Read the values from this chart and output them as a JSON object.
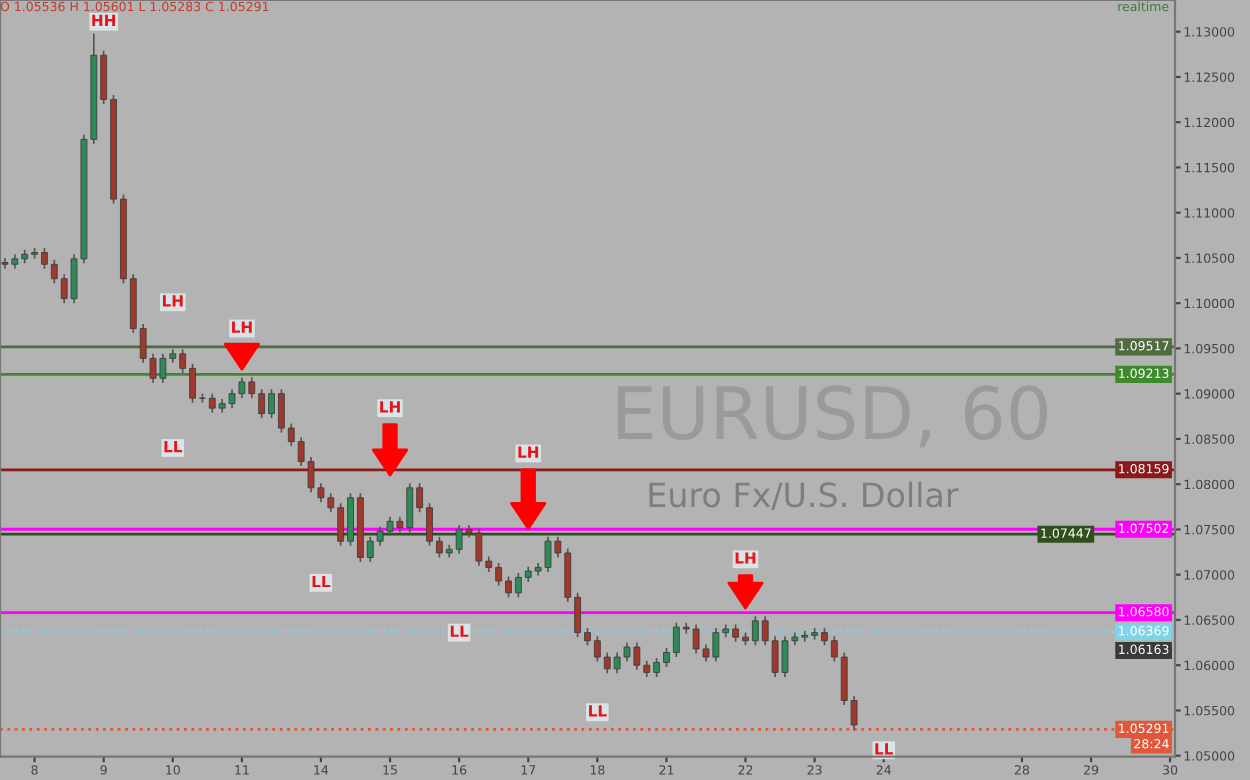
{
  "chart_data": {
    "type": "candlestick",
    "title": "EURUSD, 60",
    "subtitle": "Euro Fx/U.S. Dollar",
    "categories": [
      null,
      null,
      null,
      "8",
      null,
      null,
      null,
      null,
      null,
      null,
      "9",
      null,
      null,
      null,
      null,
      null,
      null,
      "10",
      null,
      null,
      null,
      null,
      null,
      null,
      "11",
      null,
      null,
      null,
      null,
      null,
      null,
      null,
      "14",
      null,
      null,
      null,
      null,
      null,
      null,
      "15",
      null,
      null,
      null,
      null,
      null,
      null,
      "16",
      null,
      null,
      null,
      null,
      null,
      null,
      "17",
      null,
      null,
      null,
      null,
      null,
      null,
      "18",
      null,
      null,
      null,
      null,
      null,
      null,
      "21",
      null,
      null,
      null,
      null,
      null,
      null,
      null,
      "22",
      null,
      null,
      null,
      null,
      null,
      null,
      "23",
      null,
      null,
      null,
      null,
      null,
      null,
      "24",
      null,
      null,
      null,
      null,
      null,
      null,
      null,
      null,
      null,
      null,
      null,
      null,
      null,
      "28",
      null,
      null,
      null,
      null,
      null,
      null,
      "29",
      null,
      null,
      null,
      null,
      null,
      null,
      null,
      "30"
    ],
    "ohlc": [
      [
        1.1045,
        1.105,
        1.1038,
        1.1043
      ],
      [
        1.1043,
        1.1054,
        1.1038,
        1.1049
      ],
      [
        1.1049,
        1.1059,
        1.1044,
        1.1054
      ],
      [
        1.1054,
        1.1061,
        1.1049,
        1.1056
      ],
      [
        1.1056,
        1.1061,
        1.1038,
        1.1043
      ],
      [
        1.1043,
        1.1048,
        1.1022,
        1.1027
      ],
      [
        1.1027,
        1.1032,
        1.1,
        1.1005
      ],
      [
        1.1005,
        1.1054,
        1.1,
        1.1049
      ],
      [
        1.1049,
        1.1186,
        1.1044,
        1.1181
      ],
      [
        1.1181,
        1.1298,
        1.1176,
        1.1274
      ],
      [
        1.1274,
        1.1279,
        1.122,
        1.1225
      ],
      [
        1.1225,
        1.123,
        1.111,
        1.1115
      ],
      [
        1.1115,
        1.112,
        1.1022,
        1.1027
      ],
      [
        1.1027,
        1.1032,
        1.0967,
        1.0972
      ],
      [
        1.0972,
        1.0977,
        1.0934,
        1.0939
      ],
      [
        1.0939,
        1.0944,
        1.0912,
        1.0917
      ],
      [
        1.0917,
        1.0944,
        1.0912,
        1.0939
      ],
      [
        1.0939,
        1.0949,
        1.0934,
        1.0944
      ],
      [
        1.0944,
        1.0949,
        1.0923,
        1.0928
      ],
      [
        1.0928,
        1.0933,
        1.089,
        1.0895
      ],
      [
        1.0895,
        1.09,
        1.089,
        1.0895
      ],
      [
        1.0895,
        1.09,
        1.0879,
        1.0884
      ],
      [
        1.0884,
        1.0894,
        1.0879,
        1.0889
      ],
      [
        1.0889,
        1.0905,
        1.0884,
        1.09
      ],
      [
        1.09,
        1.0918,
        1.0895,
        1.0913
      ],
      [
        1.0913,
        1.0918,
        1.0895,
        1.09
      ],
      [
        1.09,
        1.0905,
        1.0873,
        1.0878
      ],
      [
        1.0878,
        1.0905,
        1.0873,
        1.09
      ],
      [
        1.09,
        1.0905,
        1.0857,
        1.0862
      ],
      [
        1.0862,
        1.0867,
        1.0842,
        1.0847
      ],
      [
        1.0847,
        1.0852,
        1.082,
        1.0825
      ],
      [
        1.0825,
        1.083,
        1.0791,
        1.0796
      ],
      [
        1.0796,
        1.0801,
        1.078,
        1.0785
      ],
      [
        1.0785,
        1.079,
        1.0769,
        1.0774
      ],
      [
        1.0774,
        1.0779,
        1.0732,
        1.0737
      ],
      [
        1.0737,
        1.079,
        1.0732,
        1.0785
      ],
      [
        1.0785,
        1.079,
        1.0714,
        1.0719
      ],
      [
        1.0719,
        1.0742,
        1.0714,
        1.0737
      ],
      [
        1.0737,
        1.0753,
        1.0732,
        1.0748
      ],
      [
        1.0748,
        1.0764,
        1.0743,
        1.0759
      ],
      [
        1.0759,
        1.0764,
        1.0747,
        1.0752
      ],
      [
        1.0752,
        1.0801,
        1.0747,
        1.0796
      ],
      [
        1.0796,
        1.0801,
        1.0769,
        1.0774
      ],
      [
        1.0774,
        1.0779,
        1.0732,
        1.0737
      ],
      [
        1.0737,
        1.0742,
        1.0719,
        1.0724
      ],
      [
        1.0724,
        1.0733,
        1.0719,
        1.0728
      ],
      [
        1.0728,
        1.0755,
        1.0723,
        1.075
      ],
      [
        1.075,
        1.0755,
        1.0741,
        1.0746
      ],
      [
        1.0746,
        1.0751,
        1.071,
        1.0715
      ],
      [
        1.0715,
        1.072,
        1.0703,
        1.0708
      ],
      [
        1.0708,
        1.0713,
        1.0688,
        1.0693
      ],
      [
        1.0693,
        1.0698,
        1.0675,
        1.068
      ],
      [
        1.068,
        1.0702,
        1.0675,
        1.0697
      ],
      [
        1.0697,
        1.0709,
        1.0692,
        1.0704
      ],
      [
        1.0704,
        1.0713,
        1.0699,
        1.0708
      ],
      [
        1.0708,
        1.0742,
        1.0703,
        1.0737
      ],
      [
        1.0737,
        1.0742,
        1.0719,
        1.0724
      ],
      [
        1.0724,
        1.0729,
        1.067,
        1.0675
      ],
      [
        1.0675,
        1.068,
        1.0631,
        1.0636
      ],
      [
        1.0636,
        1.0641,
        1.0622,
        1.0627
      ],
      [
        1.0627,
        1.0632,
        1.0604,
        1.0609
      ],
      [
        1.0609,
        1.0614,
        1.0591,
        1.0596
      ],
      [
        1.0596,
        1.0614,
        1.0591,
        1.0609
      ],
      [
        1.0609,
        1.0625,
        1.0604,
        1.062
      ],
      [
        1.062,
        1.0625,
        1.0595,
        1.06
      ],
      [
        1.06,
        1.0605,
        1.0587,
        1.0592
      ],
      [
        1.0592,
        1.0608,
        1.0587,
        1.0603
      ],
      [
        1.0603,
        1.0619,
        1.0598,
        1.0614
      ],
      [
        1.0614,
        1.0647,
        1.0609,
        1.0642
      ],
      [
        1.0642,
        1.0647,
        1.0635,
        1.064
      ],
      [
        1.064,
        1.0645,
        1.0613,
        1.0618
      ],
      [
        1.0618,
        1.0623,
        1.0604,
        1.0609
      ],
      [
        1.0609,
        1.0641,
        1.0604,
        1.0636
      ],
      [
        1.0636,
        1.0645,
        1.0631,
        1.064
      ],
      [
        1.064,
        1.0645,
        1.0626,
        1.0631
      ],
      [
        1.0631,
        1.0636,
        1.0622,
        1.0627
      ],
      [
        1.0627,
        1.0654,
        1.0622,
        1.0649
      ],
      [
        1.0649,
        1.0654,
        1.0622,
        1.0627
      ],
      [
        1.0627,
        1.0632,
        1.0587,
        1.0592
      ],
      [
        1.0592,
        1.0632,
        1.0587,
        1.0627
      ],
      [
        1.0627,
        1.0636,
        1.0622,
        1.0631
      ],
      [
        1.0631,
        1.0638,
        1.0626,
        1.0633
      ],
      [
        1.0633,
        1.0641,
        1.0628,
        1.0636
      ],
      [
        1.0636,
        1.0641,
        1.0622,
        1.0627
      ],
      [
        1.0627,
        1.0632,
        1.0604,
        1.0609
      ],
      [
        1.0609,
        1.0614,
        1.0556,
        1.0561
      ],
      [
        1.0561,
        1.0566,
        1.0528,
        1.0534
      ],
      null,
      null,
      null,
      null,
      null,
      null,
      null,
      null,
      null,
      null,
      null,
      null,
      null,
      null,
      null,
      null,
      null,
      null,
      null,
      null,
      null,
      null,
      null,
      null,
      null,
      null,
      null,
      null,
      null,
      null,
      null,
      null
    ],
    "colors": [
      "#a0392b",
      "#2e8b57",
      "#2e8b57",
      "#2e8b57",
      "#a0392b",
      "#a0392b",
      "#a0392b",
      "#2e8b57",
      "#2e8b57",
      "#2e8b57",
      "#a0392b",
      "#a0392b",
      "#a0392b",
      "#a0392b",
      "#a0392b",
      "#a0392b",
      "#2e8b57",
      "#2e8b57",
      "#a0392b",
      "#a0392b",
      "#2e8b57",
      "#a0392b",
      "#2e8b57",
      "#2e8b57",
      "#2e8b57",
      "#a0392b",
      "#a0392b",
      "#2e8b57",
      "#a0392b",
      "#a0392b",
      "#a0392b",
      "#a0392b",
      "#a0392b",
      "#a0392b",
      "#a0392b",
      "#2e8b57",
      "#a0392b",
      "#2e8b57",
      "#2e8b57",
      "#2e8b57",
      "#a0392b",
      "#2e8b57",
      "#a0392b",
      "#a0392b",
      "#a0392b",
      "#2e8b57",
      "#2e8b57",
      "#a0392b",
      "#a0392b",
      "#a0392b",
      "#a0392b",
      "#a0392b",
      "#2e8b57",
      "#2e8b57",
      "#2e8b57",
      "#2e8b57",
      "#a0392b",
      "#a0392b",
      "#a0392b",
      "#a0392b",
      "#a0392b",
      "#a0392b",
      "#2e8b57",
      "#2e8b57",
      "#a0392b",
      "#a0392b",
      "#2e8b57",
      "#2e8b57",
      "#2e8b57",
      "#a0392b",
      "#a0392b",
      "#a0392b",
      "#2e8b57",
      "#2e8b57",
      "#a0392b",
      "#a0392b",
      "#2e8b57",
      "#a0392b",
      "#a0392b",
      "#2e8b57",
      "#2e8b57",
      "#2e8b57",
      "#2e8b57",
      "#a0392b",
      "#a0392b",
      "#a0392b",
      "#a0392b",
      null,
      null,
      null,
      null,
      null,
      null,
      null,
      null,
      null,
      null,
      null,
      null,
      null,
      null,
      null,
      null,
      null,
      null,
      null,
      null,
      null,
      null,
      null,
      null,
      null,
      null,
      null,
      null,
      null,
      null,
      null,
      null
    ],
    "ylim": [
      1.0499,
      1.1335
    ],
    "yticks": [
      {
        "value": 1.05,
        "label": "1.05000"
      },
      {
        "value": 1.055,
        "label": "1.05500"
      },
      {
        "value": 1.06,
        "label": "1.06000"
      },
      {
        "value": 1.065,
        "label": "1.06500"
      },
      {
        "value": 1.07,
        "label": "1.07000"
      },
      {
        "value": 1.075,
        "label": "1.07500"
      },
      {
        "value": 1.08,
        "label": "1.08000"
      },
      {
        "value": 1.085,
        "label": "1.08500"
      },
      {
        "value": 1.09,
        "label": "1.09000"
      },
      {
        "value": 1.095,
        "label": "1.09500"
      },
      {
        "value": 1.1,
        "label": "1.10000"
      },
      {
        "value": 1.105,
        "label": "1.10500"
      },
      {
        "value": 1.11,
        "label": "1.11000"
      },
      {
        "value": 1.115,
        "label": "1.11500"
      },
      {
        "value": 1.12,
        "label": "1.12000"
      },
      {
        "value": 1.125,
        "label": "1.12500"
      },
      {
        "value": 1.13,
        "label": "1.13000"
      }
    ],
    "ref_lines": [
      {
        "axis": "y",
        "value": 1.09517,
        "label": "1.09517",
        "color": "#4f6b3f",
        "line_style": "solid"
      },
      {
        "axis": "y",
        "value": 1.09213,
        "label": "1.09213",
        "color": "#3f8a2f",
        "line_style": "solid"
      },
      {
        "axis": "y",
        "value": 1.08159,
        "label": "1.08159",
        "color": "#8b1a1a",
        "line_style": "solid"
      },
      {
        "axis": "y",
        "value": 1.07502,
        "label": "1.07502",
        "color": "#ff00ff",
        "line_style": "solid"
      },
      {
        "axis": "y",
        "value": 1.07447,
        "label": "1.07447",
        "color": "#2f4f1f",
        "line_style": "solid"
      },
      {
        "axis": "y",
        "value": 1.0658,
        "label": "1.06580",
        "color": "#ff00ff",
        "line_style": "solid"
      },
      {
        "axis": "y",
        "value": 1.06369,
        "label": "1.06369",
        "color": "#7fd3e6",
        "line_style": "dotted"
      },
      {
        "axis": "y",
        "value": 1.05291,
        "label": "1.05291",
        "color": "#e0583c",
        "line_style": "dotted"
      }
    ],
    "annotations": [
      "O 1.05536 H 1.05601 L 1.05283 C 1.05291",
      "realtime",
      {
        "text": "1.06163",
        "y": 1.06163
      },
      {
        "text": "28:24",
        "y": 1.0512
      },
      {
        "text": "HH",
        "x": "9",
        "y": 1.1311
      },
      {
        "text": "LH",
        "x": "10",
        "y": 1.1001
      },
      {
        "text": "LH",
        "x": "11",
        "y": 1.0972
      },
      {
        "text": "LL",
        "x": "10",
        "y": 1.084
      },
      {
        "text": "LH",
        "x": "15",
        "y": 1.0884
      },
      {
        "text": "LL",
        "x": "14",
        "y": 1.0691
      },
      {
        "text": "LH",
        "x": "17",
        "y": 1.0834
      },
      {
        "text": "LL",
        "x": "16",
        "y": 1.0636
      },
      {
        "text": "LH",
        "x": "22",
        "y": 1.0717
      },
      {
        "text": "LL",
        "x": "18",
        "y": 1.0548
      },
      {
        "text": "LL",
        "x": "24",
        "y": 1.0506
      }
    ]
  }
}
